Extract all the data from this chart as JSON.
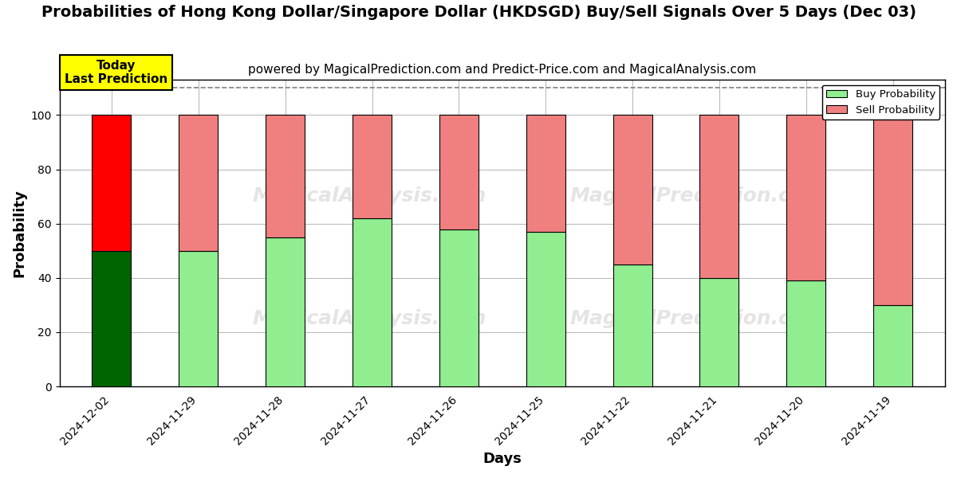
{
  "title": "Probabilities of Hong Kong Dollar/Singapore Dollar (HKDSGD) Buy/Sell Signals Over 5 Days (Dec 03)",
  "subtitle": "powered by MagicalPrediction.com and Predict-Price.com and MagicalAnalysis.com",
  "xlabel": "Days",
  "ylabel": "Probability",
  "categories": [
    "2024-12-02",
    "2024-11-29",
    "2024-11-28",
    "2024-11-27",
    "2024-11-26",
    "2024-11-25",
    "2024-11-22",
    "2024-11-21",
    "2024-11-20",
    "2024-11-19"
  ],
  "buy_values": [
    50,
    50,
    55,
    62,
    58,
    57,
    45,
    40,
    39,
    30
  ],
  "sell_values": [
    50,
    50,
    45,
    38,
    42,
    43,
    55,
    60,
    61,
    70
  ],
  "buy_colors": [
    "#006400",
    "#90EE90",
    "#90EE90",
    "#90EE90",
    "#90EE90",
    "#90EE90",
    "#90EE90",
    "#90EE90",
    "#90EE90",
    "#90EE90"
  ],
  "sell_colors": [
    "#FF0000",
    "#F08080",
    "#F08080",
    "#F08080",
    "#F08080",
    "#F08080",
    "#F08080",
    "#F08080",
    "#F08080",
    "#F08080"
  ],
  "today_label": "Today\nLast Prediction",
  "today_bg": "#FFFF00",
  "legend_buy_color": "#90EE90",
  "legend_sell_color": "#F08080",
  "watermark1": "MagicalAnalysis.com",
  "watermark2": "MagicalPrediction.com",
  "ylim": [
    0,
    113
  ],
  "yticks": [
    0,
    20,
    40,
    60,
    80,
    100
  ],
  "title_fontsize": 14,
  "subtitle_fontsize": 11,
  "axis_label_fontsize": 13,
  "tick_fontsize": 10,
  "bg_color": "#FFFFFF",
  "grid_color": "#BBBBBB",
  "bar_width": 0.45
}
